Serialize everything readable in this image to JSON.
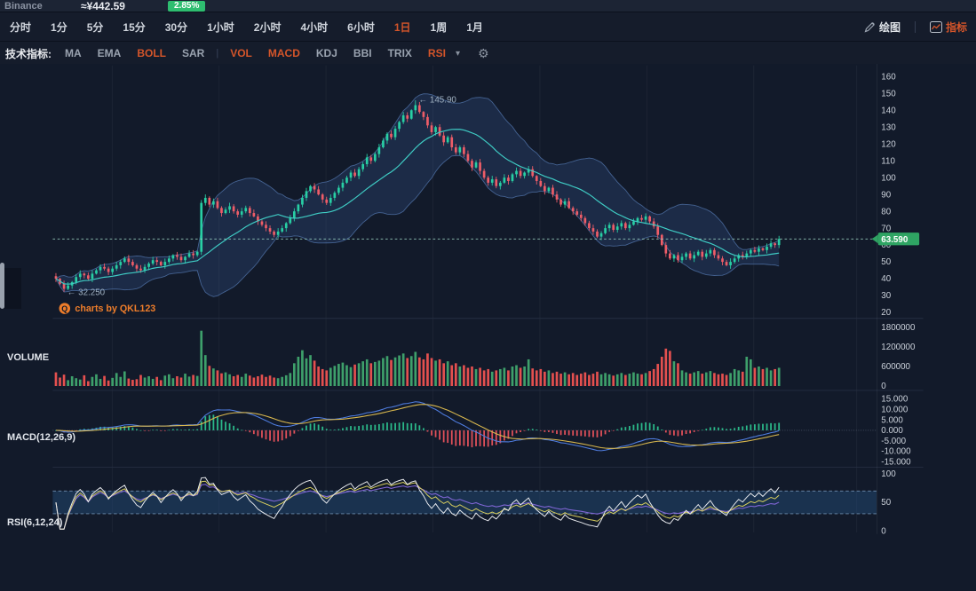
{
  "header": {
    "exchange": "Binance",
    "price_cny": "≈¥442.59",
    "change_percent": "2.85%"
  },
  "toolbar": {
    "intervals": [
      {
        "label": "分时",
        "active": false
      },
      {
        "label": "1分",
        "active": false
      },
      {
        "label": "5分",
        "active": false
      },
      {
        "label": "15分",
        "active": false
      },
      {
        "label": "30分",
        "active": false
      },
      {
        "label": "1小时",
        "active": false
      },
      {
        "label": "2小时",
        "active": false
      },
      {
        "label": "4小时",
        "active": false
      },
      {
        "label": "6小时",
        "active": false
      },
      {
        "label": "1日",
        "active": true
      },
      {
        "label": "1周",
        "active": false
      },
      {
        "label": "1月",
        "active": false
      }
    ],
    "draw_label": "绘图",
    "indicators_label": "指标"
  },
  "indicator_bar": {
    "title": "技术指标:",
    "items": [
      {
        "label": "MA",
        "active": false
      },
      {
        "label": "EMA",
        "active": false
      },
      {
        "label": "BOLL",
        "active": true
      },
      {
        "label": "SAR",
        "active": false
      },
      {
        "label": "VOL",
        "active": true
      },
      {
        "label": "MACD",
        "active": true
      },
      {
        "label": "KDJ",
        "active": false
      },
      {
        "label": "BBI",
        "active": false
      },
      {
        "label": "TRIX",
        "active": false
      },
      {
        "label": "RSI",
        "active": true
      }
    ],
    "caret": "▾",
    "gear": "⚙"
  },
  "panels": {
    "volume_label": "VOLUME",
    "macd_label": "MACD(12,26,9)",
    "rsi_label": "RSI(6,12,24)"
  },
  "watermark": {
    "text": "charts by QKL123",
    "logo_letter": "Q"
  },
  "price_tag": "63.590",
  "annotations": {
    "high": "← 145.90",
    "low": "← 32.250"
  },
  "axes": {
    "main_ticks": [
      "160",
      "150",
      "140",
      "130",
      "120",
      "110",
      "100",
      "90",
      "80",
      "70",
      "60",
      "50",
      "40",
      "30",
      "20"
    ],
    "volume_ticks": [
      "1800000",
      "1200000",
      "600000",
      "0"
    ],
    "macd_ticks": [
      "15.000",
      "10.000",
      "5.000",
      "0.000",
      "-5.000",
      "-10.000",
      "-15.000"
    ],
    "rsi_ticks": [
      "100",
      "50",
      "0"
    ]
  },
  "colors": {
    "up": "#28cfa4",
    "down": "#ee5d68",
    "vol_up": "#3ea06b",
    "vol_down": "#e4504f",
    "boll_mid": "#3fcdc5",
    "boll_edge": "#49699b",
    "boll_fill": "rgba(70,115,190,0.20)",
    "macd_dif": "#4f7de0",
    "macd_dea": "#d9b84e",
    "rsi_fast": "#e8eaee",
    "rsi_mid": "#d9cf5e",
    "rsi_slow": "#8066d6",
    "price_line": "#9fd8c6",
    "tag_bg": "#2fa463",
    "accent_orange": "#d4552a",
    "watermark": "#ee7d2a",
    "axis_text": "#cbd1da",
    "annotation_text": "#9fb0c0"
  },
  "chart_data": {
    "type": "candlestick",
    "panes": [
      "price+BOLL(20,2)",
      "volume",
      "MACD(12,26,9)",
      "RSI(6,12,24)"
    ],
    "ylim_price": [
      20,
      160
    ],
    "ylim_volume": [
      0,
      1800000
    ],
    "ylim_macd": [
      -15,
      15
    ],
    "ylim_rsi": [
      0,
      100
    ],
    "last_price": 63.59,
    "session_high": 145.9,
    "session_low": 32.25,
    "special": {
      "high_index": 89,
      "high_value": 145.9,
      "low_index": 2,
      "low_value": 32.25
    },
    "closes": [
      40,
      37,
      34,
      36,
      38,
      41,
      43,
      42,
      40,
      43,
      45,
      47,
      46,
      44,
      46,
      48,
      50,
      52,
      50,
      48,
      46,
      45,
      47,
      49,
      51,
      50,
      48,
      50,
      52,
      54,
      53,
      51,
      53,
      55,
      54,
      56,
      85,
      88,
      84,
      86,
      82,
      79,
      81,
      83,
      80,
      78,
      80,
      82,
      79,
      77,
      74,
      72,
      70,
      68,
      66,
      68,
      70,
      73,
      76,
      80,
      84,
      88,
      92,
      95,
      93,
      90,
      87,
      85,
      88,
      91,
      94,
      97,
      100,
      103,
      101,
      105,
      108,
      112,
      110,
      114,
      118,
      122,
      126,
      124,
      129,
      133,
      137,
      135,
      140,
      143,
      139,
      136,
      131,
      127,
      130,
      125,
      121,
      124,
      118,
      115,
      118,
      114,
      110,
      106,
      109,
      104,
      100,
      97,
      99,
      95,
      97,
      100,
      98,
      102,
      104,
      101,
      103,
      105,
      101,
      98,
      95,
      92,
      94,
      90,
      87,
      84,
      86,
      82,
      80,
      78,
      76,
      73,
      70,
      68,
      65,
      67,
      70,
      72,
      69,
      71,
      73,
      70,
      72,
      74,
      76,
      75,
      77,
      74,
      71,
      66,
      60,
      55,
      52,
      54,
      51,
      53,
      55,
      52,
      54,
      56,
      53,
      55,
      57,
      54,
      52,
      50,
      48,
      50,
      52,
      54,
      53,
      55,
      57,
      56,
      58,
      57,
      59,
      61,
      60,
      63.59
    ],
    "volumes": [
      420000,
      260000,
      350000,
      180000,
      300000,
      240000,
      200000,
      330000,
      150000,
      280000,
      360000,
      220000,
      310000,
      170000,
      250000,
      400000,
      280000,
      450000,
      230000,
      190000,
      210000,
      340000,
      260000,
      300000,
      220000,
      280000,
      180000,
      320000,
      360000,
      240000,
      300000,
      260000,
      380000,
      290000,
      340000,
      310000,
      1700000,
      950000,
      620000,
      540000,
      480000,
      390000,
      420000,
      360000,
      300000,
      340000,
      280000,
      380000,
      320000,
      260000,
      300000,
      350000,
      280000,
      320000,
      260000,
      240000,
      280000,
      330000,
      400000,
      700000,
      900000,
      1100000,
      850000,
      950000,
      780000,
      600000,
      520000,
      480000,
      560000,
      620000,
      680000,
      720000,
      640000,
      580000,
      660000,
      700000,
      760000,
      820000,
      700000,
      740000,
      780000,
      860000,
      920000,
      800000,
      880000,
      940000,
      1000000,
      860000,
      920000,
      1050000,
      880000,
      820000,
      1000000,
      860000,
      780000,
      820000,
      700000,
      760000,
      640000,
      700000,
      600000,
      640000,
      560000,
      600000,
      520000,
      560000,
      480000,
      520000,
      440000,
      480000,
      520000,
      560000,
      480000,
      600000,
      640000,
      560000,
      600000,
      820000,
      540000,
      480000,
      520000,
      440000,
      480000,
      400000,
      440000,
      380000,
      420000,
      360000,
      400000,
      340000,
      380000,
      420000,
      340000,
      380000,
      440000,
      360000,
      400000,
      360000,
      320000,
      360000,
      400000,
      340000,
      380000,
      420000,
      380000,
      360000,
      400000,
      460000,
      520000,
      680000,
      900000,
      1150000,
      1080000,
      760000,
      700000,
      480000,
      420000,
      380000,
      420000,
      460000,
      380000,
      420000,
      460000,
      400000,
      360000,
      380000,
      340000,
      400000,
      520000,
      480000,
      440000,
      900000,
      820000,
      560000,
      600000,
      520000,
      560000,
      480000,
      520000,
      560000
    ]
  }
}
